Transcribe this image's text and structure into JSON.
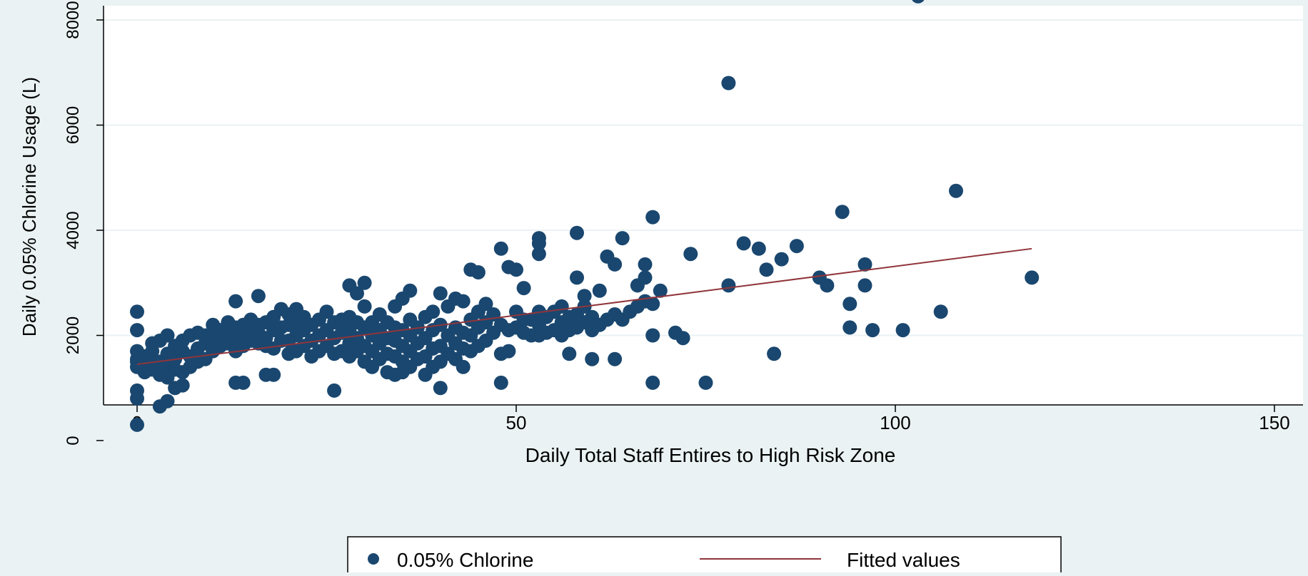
{
  "chart_data": {
    "type": "scatter",
    "title": "",
    "xlabel": "Daily Total Staff Entires to High Risk Zone",
    "ylabel": "Daily 0.05% Chlorine Usage (L)",
    "xlim": [
      0,
      150
    ],
    "ylim": [
      0,
      8000
    ],
    "x_ticks": [
      0,
      50,
      100,
      150
    ],
    "y_ticks": [
      0,
      2000,
      4000,
      6000,
      8000
    ],
    "x_tick_labels": [
      "0",
      "50",
      "100",
      "150"
    ],
    "y_tick_labels": [
      "0",
      "2000",
      "4000",
      "6000",
      "8000"
    ],
    "grid": true,
    "legend_position": "bottom",
    "colors": {
      "background": "#eaf2f3",
      "plot_bg": "#ffffff",
      "points": "#1a476f",
      "fit": "#90353b",
      "grid": "#eaf2f3",
      "axis": "#000000"
    },
    "series": [
      {
        "name": "0.05% Chlorine",
        "kind": "scatter",
        "points": [
          [
            0,
            300
          ],
          [
            0,
            800
          ],
          [
            0,
            950
          ],
          [
            0,
            1400
          ],
          [
            0,
            1500
          ],
          [
            0,
            1550
          ],
          [
            0,
            1700
          ],
          [
            0,
            2100
          ],
          [
            0,
            2450
          ],
          [
            1,
            1300
          ],
          [
            1,
            1450
          ],
          [
            1,
            1600
          ],
          [
            2,
            1350
          ],
          [
            2,
            1550
          ],
          [
            2,
            1700
          ],
          [
            2,
            1850
          ],
          [
            3,
            650
          ],
          [
            3,
            1250
          ],
          [
            3,
            1500
          ],
          [
            3,
            1900
          ],
          [
            4,
            750
          ],
          [
            4,
            1200
          ],
          [
            4,
            1400
          ],
          [
            4,
            1650
          ],
          [
            4,
            2000
          ],
          [
            5,
            1000
          ],
          [
            5,
            1350
          ],
          [
            5,
            1550
          ],
          [
            5,
            1800
          ],
          [
            6,
            1050
          ],
          [
            6,
            1300
          ],
          [
            6,
            1700
          ],
          [
            6,
            1900
          ],
          [
            7,
            1400
          ],
          [
            7,
            1600
          ],
          [
            7,
            2000
          ],
          [
            8,
            1500
          ],
          [
            8,
            1750
          ],
          [
            8,
            2050
          ],
          [
            9,
            1550
          ],
          [
            9,
            1850
          ],
          [
            9,
            2000
          ],
          [
            10,
            1700
          ],
          [
            10,
            1950
          ],
          [
            10,
            2200
          ],
          [
            11,
            1800
          ],
          [
            11,
            2000
          ],
          [
            11,
            2100
          ],
          [
            12,
            1850
          ],
          [
            12,
            2050
          ],
          [
            12,
            2250
          ],
          [
            13,
            1100
          ],
          [
            13,
            1700
          ],
          [
            13,
            1950
          ],
          [
            13,
            2150
          ],
          [
            13,
            2650
          ],
          [
            14,
            1100
          ],
          [
            14,
            1800
          ],
          [
            14,
            2000
          ],
          [
            14,
            2200
          ],
          [
            15,
            1900
          ],
          [
            15,
            2100
          ],
          [
            15,
            2300
          ],
          [
            16,
            1850
          ],
          [
            16,
            2050
          ],
          [
            16,
            2200
          ],
          [
            16,
            2750
          ],
          [
            17,
            1250
          ],
          [
            17,
            1800
          ],
          [
            17,
            1950
          ],
          [
            17,
            2250
          ],
          [
            18,
            1250
          ],
          [
            18,
            1750
          ],
          [
            18,
            2100
          ],
          [
            18,
            2350
          ],
          [
            19,
            1900
          ],
          [
            19,
            2150
          ],
          [
            19,
            2500
          ],
          [
            20,
            1650
          ],
          [
            20,
            1900
          ],
          [
            20,
            2200
          ],
          [
            20,
            2400
          ],
          [
            21,
            1700
          ],
          [
            21,
            2000
          ],
          [
            21,
            2250
          ],
          [
            21,
            2500
          ],
          [
            22,
            1800
          ],
          [
            22,
            2100
          ],
          [
            22,
            2350
          ],
          [
            23,
            1600
          ],
          [
            23,
            1900
          ],
          [
            23,
            2200
          ],
          [
            24,
            1700
          ],
          [
            24,
            2000
          ],
          [
            24,
            2300
          ],
          [
            25,
            1800
          ],
          [
            25,
            2100
          ],
          [
            25,
            2450
          ],
          [
            26,
            950
          ],
          [
            26,
            1650
          ],
          [
            26,
            1950
          ],
          [
            26,
            2250
          ],
          [
            27,
            1700
          ],
          [
            27,
            2050
          ],
          [
            27,
            2300
          ],
          [
            28,
            1600
          ],
          [
            28,
            1850
          ],
          [
            28,
            2100
          ],
          [
            28,
            2350
          ],
          [
            28,
            2950
          ],
          [
            29,
            1700
          ],
          [
            29,
            1950
          ],
          [
            29,
            2250
          ],
          [
            29,
            2800
          ],
          [
            30,
            1500
          ],
          [
            30,
            1800
          ],
          [
            30,
            2150
          ],
          [
            30,
            2550
          ],
          [
            30,
            3000
          ],
          [
            31,
            1400
          ],
          [
            31,
            1700
          ],
          [
            31,
            2000
          ],
          [
            31,
            2250
          ],
          [
            32,
            1550
          ],
          [
            32,
            1850
          ],
          [
            32,
            2100
          ],
          [
            32,
            2400
          ],
          [
            33,
            1300
          ],
          [
            33,
            1650
          ],
          [
            33,
            1950
          ],
          [
            33,
            2250
          ],
          [
            34,
            1250
          ],
          [
            34,
            1600
          ],
          [
            34,
            1900
          ],
          [
            34,
            2150
          ],
          [
            34,
            2550
          ],
          [
            35,
            1300
          ],
          [
            35,
            1500
          ],
          [
            35,
            1800
          ],
          [
            35,
            2100
          ],
          [
            35,
            2700
          ],
          [
            36,
            1400
          ],
          [
            36,
            1700
          ],
          [
            36,
            2000
          ],
          [
            36,
            2300
          ],
          [
            36,
            2850
          ],
          [
            37,
            1550
          ],
          [
            37,
            1850
          ],
          [
            37,
            2150
          ],
          [
            38,
            1250
          ],
          [
            38,
            1600
          ],
          [
            38,
            1950
          ],
          [
            38,
            2350
          ],
          [
            39,
            1400
          ],
          [
            39,
            1750
          ],
          [
            39,
            2100
          ],
          [
            39,
            2450
          ],
          [
            40,
            1000
          ],
          [
            40,
            1500
          ],
          [
            40,
            1800
          ],
          [
            40,
            2200
          ],
          [
            40,
            2800
          ],
          [
            41,
            1650
          ],
          [
            41,
            2000
          ],
          [
            41,
            2550
          ],
          [
            42,
            1550
          ],
          [
            42,
            1850
          ],
          [
            42,
            2150
          ],
          [
            42,
            2700
          ],
          [
            43,
            1400
          ],
          [
            43,
            1750
          ],
          [
            43,
            2050
          ],
          [
            43,
            2650
          ],
          [
            44,
            1700
          ],
          [
            44,
            2000
          ],
          [
            44,
            2300
          ],
          [
            44,
            3250
          ],
          [
            45,
            1800
          ],
          [
            45,
            2150
          ],
          [
            45,
            2450
          ],
          [
            45,
            3200
          ],
          [
            46,
            1900
          ],
          [
            46,
            2250
          ],
          [
            46,
            2600
          ],
          [
            47,
            2050
          ],
          [
            47,
            2400
          ],
          [
            48,
            1100
          ],
          [
            48,
            1650
          ],
          [
            48,
            2200
          ],
          [
            48,
            3650
          ],
          [
            49,
            1700
          ],
          [
            49,
            2100
          ],
          [
            49,
            3300
          ],
          [
            50,
            2150
          ],
          [
            50,
            2450
          ],
          [
            50,
            3250
          ],
          [
            51,
            2050
          ],
          [
            51,
            2300
          ],
          [
            51,
            2900
          ],
          [
            52,
            2000
          ],
          [
            52,
            2300
          ],
          [
            53,
            2000
          ],
          [
            53,
            2200
          ],
          [
            53,
            2450
          ],
          [
            53,
            3550
          ],
          [
            53,
            3750
          ],
          [
            53,
            3850
          ],
          [
            54,
            2050
          ],
          [
            54,
            2350
          ],
          [
            55,
            2100
          ],
          [
            55,
            2450
          ],
          [
            56,
            2000
          ],
          [
            56,
            2250
          ],
          [
            56,
            2550
          ],
          [
            57,
            1650
          ],
          [
            57,
            2100
          ],
          [
            57,
            2350
          ],
          [
            58,
            2150
          ],
          [
            58,
            2400
          ],
          [
            58,
            3100
          ],
          [
            58,
            3950
          ],
          [
            59,
            2250
          ],
          [
            59,
            2550
          ],
          [
            59,
            2750
          ],
          [
            60,
            1550
          ],
          [
            60,
            2100
          ],
          [
            60,
            2350
          ],
          [
            61,
            2200
          ],
          [
            61,
            2850
          ],
          [
            62,
            2300
          ],
          [
            62,
            3500
          ],
          [
            63,
            1550
          ],
          [
            63,
            2400
          ],
          [
            63,
            3350
          ],
          [
            64,
            2300
          ],
          [
            64,
            3850
          ],
          [
            65,
            2450
          ],
          [
            66,
            2550
          ],
          [
            66,
            2950
          ],
          [
            67,
            2650
          ],
          [
            67,
            3100
          ],
          [
            67,
            3350
          ],
          [
            68,
            1100
          ],
          [
            68,
            2000
          ],
          [
            68,
            2600
          ],
          [
            68,
            4250
          ],
          [
            69,
            2850
          ],
          [
            71,
            2050
          ],
          [
            72,
            1950
          ],
          [
            73,
            3550
          ],
          [
            75,
            1100
          ],
          [
            78,
            2950
          ],
          [
            78,
            6800
          ],
          [
            80,
            3750
          ],
          [
            82,
            3650
          ],
          [
            83,
            3250
          ],
          [
            84,
            1650
          ],
          [
            85,
            3450
          ],
          [
            87,
            3700
          ],
          [
            90,
            3100
          ],
          [
            91,
            2950
          ],
          [
            93,
            4350
          ],
          [
            94,
            2150
          ],
          [
            94,
            2600
          ],
          [
            96,
            2950
          ],
          [
            96,
            3350
          ],
          [
            97,
            2100
          ],
          [
            101,
            2100
          ],
          [
            103,
            8450
          ],
          [
            106,
            2450
          ],
          [
            108,
            4750
          ],
          [
            118,
            3100
          ]
        ]
      },
      {
        "name": "Fitted values",
        "kind": "line",
        "points": [
          [
            0,
            1450
          ],
          [
            118,
            3650
          ]
        ]
      }
    ]
  }
}
